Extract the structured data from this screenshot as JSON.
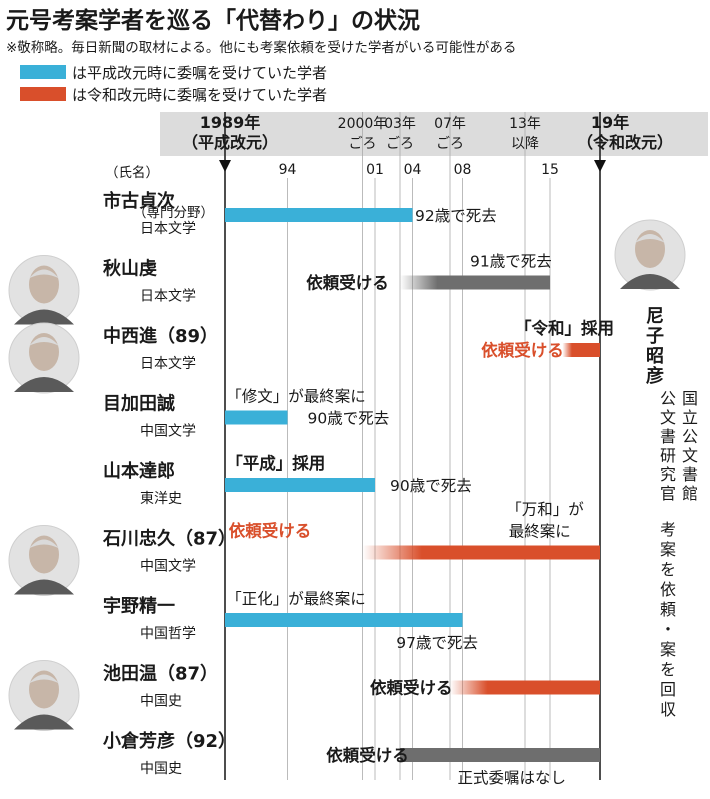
{
  "header": {
    "title": "元号考案学者を巡る「代替わり」の状況",
    "note": "※敬称略。毎日新聞の取材による。他にも考案依頼を受けた学者がいる可能性がある"
  },
  "legend": [
    {
      "label": "は平成改元時に委嘱を受けていた学者",
      "color": "#3ab0d8"
    },
    {
      "label": "は令和改元時に委嘱を受けていた学者",
      "color": "#d94f2b"
    }
  ],
  "colors": {
    "blue": "#3ab0d8",
    "red": "#d94f2b",
    "gray": "#6e6e6e",
    "header_bg": "#dcdcdc"
  },
  "axis": {
    "start_line1": "1989年",
    "start_line2": "（平成改元）",
    "end_line1": "19年",
    "end_line2": "（令和改元）",
    "top_labels": [
      {
        "year": 2000,
        "line1": "2000年",
        "line2": "ごろ"
      },
      {
        "year": 2003,
        "line1": "03年",
        "line2": "ごろ"
      },
      {
        "year": 2007,
        "line1": "07年",
        "line2": "ごろ"
      },
      {
        "year": 2013,
        "line1": "13年",
        "line2": "以降"
      }
    ],
    "ticks": [
      {
        "year": 1994,
        "label": "94"
      },
      {
        "year": 2001,
        "label": "01"
      },
      {
        "year": 2004,
        "label": "04"
      },
      {
        "year": 2008,
        "label": "08"
      },
      {
        "year": 2015,
        "label": "15"
      }
    ]
  },
  "labels": {
    "name_header": "（氏名）",
    "field_header": "（専門分野）"
  },
  "scholars": [
    {
      "name": "市古貞次",
      "field": "日本文学",
      "photo": false,
      "bars": [
        {
          "color": "blue",
          "start": 1989,
          "end": 2004
        }
      ],
      "notes": [
        {
          "text": "92歳で死去",
          "year": 2004.2,
          "line": 0,
          "color": "dark",
          "bold": false
        }
      ]
    },
    {
      "name": "秋山虔",
      "field": "日本文学",
      "photo": true,
      "bars": [
        {
          "color": "gray",
          "start": 2003,
          "end": 2015,
          "fade": true
        }
      ],
      "notes": [
        {
          "text": "91歳で死去",
          "year": 2008.6,
          "line": -1,
          "color": "dark",
          "bold": false
        },
        {
          "text": "依頼受ける",
          "year": 1995.5,
          "line": 0,
          "color": "dark",
          "bold": true
        }
      ]
    },
    {
      "name": "中西進（89）",
      "field": "日本文学",
      "photo": true,
      "bars": [
        {
          "color": "red",
          "start": 2016,
          "end": 2019,
          "fade": true
        }
      ],
      "notes": [
        {
          "text": "「令和」採用",
          "year": 2012.2,
          "line": -1,
          "color": "dark",
          "bold": true
        },
        {
          "text": "依頼受ける",
          "year": 2009.5,
          "line": 0,
          "color": "red",
          "bold": true
        }
      ]
    },
    {
      "name": "目加田誠",
      "field": "中国文学",
      "photo": false,
      "bars": [
        {
          "color": "blue",
          "start": 1989,
          "end": 1994
        }
      ],
      "notes": [
        {
          "text": "「修文」が最終案に",
          "year": 1989.1,
          "line": -1,
          "color": "dark",
          "bold": false
        },
        {
          "text": "90歳で死去",
          "year": 1995.6,
          "line": 0,
          "color": "dark",
          "bold": false
        }
      ]
    },
    {
      "name": "山本達郎",
      "field": "東洋史",
      "photo": false,
      "bars": [
        {
          "color": "blue",
          "start": 1989,
          "end": 2001
        }
      ],
      "notes": [
        {
          "text": "「平成」採用",
          "year": 1989.1,
          "line": -1,
          "color": "dark",
          "bold": true
        },
        {
          "text": "90歳で死去",
          "year": 2002.2,
          "line": 0,
          "color": "dark",
          "bold": false
        }
      ]
    },
    {
      "name": "石川忠久（87）",
      "field": "中国文学",
      "photo": true,
      "bars": [
        {
          "color": "red",
          "start": 2000,
          "end": 2019,
          "fade": true
        }
      ],
      "notes": [
        {
          "text": "依頼受ける",
          "year": 1989.3,
          "line": -1,
          "color": "red",
          "bold": true
        },
        {
          "text": "「万和」が",
          "year": 2011.5,
          "line": -2,
          "color": "dark",
          "bold": false
        },
        {
          "text": "最終案に",
          "year": 2011.7,
          "line": -1,
          "color": "dark",
          "bold": false
        }
      ]
    },
    {
      "name": "宇野精一",
      "field": "中国哲学",
      "photo": false,
      "bars": [
        {
          "color": "blue",
          "start": 1989,
          "end": 2008
        }
      ],
      "notes": [
        {
          "text": "「正化」が最終案に",
          "year": 1989.1,
          "line": -1,
          "color": "dark",
          "bold": false
        },
        {
          "text": "97歳で死去",
          "year": 2002.7,
          "line": 1,
          "color": "dark",
          "bold": false
        }
      ]
    },
    {
      "name": "池田温（87）",
      "field": "中国史",
      "photo": true,
      "bars": [
        {
          "color": "red",
          "start": 2007,
          "end": 2019,
          "fade": true
        }
      ],
      "notes": [
        {
          "text": "依頼受ける",
          "year": 2000.6,
          "line": 0,
          "color": "dark",
          "bold": true
        }
      ]
    },
    {
      "name": "小倉芳彦（92）",
      "field": "中国史",
      "photo": false,
      "bars": [
        {
          "color": "gray",
          "start": 2003,
          "end": 2019
        }
      ],
      "notes": [
        {
          "text": "依頼受ける",
          "year": 1997.1,
          "line": 0,
          "color": "dark",
          "bold": true
        },
        {
          "text": "正式委嘱はなし",
          "year": 2007.6,
          "line": 1,
          "color": "dark",
          "bold": false
        }
      ]
    }
  ],
  "side_person": {
    "name": "尼子昭彦",
    "title_col1": "国立公文書館",
    "title_col2": "公文書研究官",
    "desc": "考案を依頼・案を回収"
  }
}
